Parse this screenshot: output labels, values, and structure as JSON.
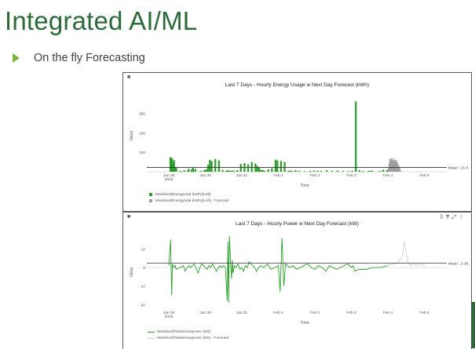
{
  "slide": {
    "title": "Integrated AI/ML",
    "bullet": "On the fly Forecasting"
  },
  "colors": {
    "title": "#2c6a3a",
    "bullet": "#7cb342",
    "series": "#2a9d2a",
    "forecast": "#9e9e9e"
  },
  "chart_data": [
    {
      "type": "bar",
      "title": "Last 7 Days - Hourly Energy Usage w Next Day Forecast (kWh)",
      "xlabel": "Time",
      "ylabel": "Value",
      "x_ticks": [
        "Jan 29\n2025",
        "Jan 30",
        "Jan 31",
        "Feb 1",
        "Feb 2",
        "Feb 3",
        "Feb 4",
        "Feb 5"
      ],
      "y_ticks": [
        100,
        200,
        300
      ],
      "ylim": [
        0,
        370
      ],
      "mean_label": "Mean : 21.8",
      "mean": 21.8,
      "series": [
        {
          "name": "Mainfeed/Energytotal (kWh)(Left)",
          "day_offsets": [
            0.02,
            0.04,
            0.06,
            0.08,
            0.1,
            0.12,
            0.14,
            0.18,
            0.3,
            0.4,
            0.5,
            0.52,
            0.6,
            0.62,
            0.64,
            0.7,
            0.85,
            0.95,
            1.0,
            1.05,
            1.1,
            1.15,
            1.25,
            1.35,
            1.45,
            1.55,
            1.6,
            1.65,
            1.7,
            1.75,
            1.85,
            1.95,
            2.05,
            2.15,
            2.25,
            2.35,
            2.4,
            2.45,
            2.5,
            2.55,
            2.6,
            2.7,
            2.8,
            2.9,
            2.95,
            3.05,
            3.15,
            3.25,
            3.3,
            3.35,
            3.45,
            3.55,
            3.7,
            3.85,
            3.95,
            4.05,
            4.15,
            4.3,
            4.45,
            4.6,
            4.75,
            4.9,
            5.0,
            5.1,
            5.2,
            5.3,
            5.45,
            5.5,
            5.55,
            5.75,
            5.85,
            5.95
          ],
          "values": [
            75,
            60,
            70,
            50,
            45,
            60,
            25,
            20,
            5,
            8,
            5,
            15,
            10,
            12,
            22,
            15,
            5,
            8,
            12,
            35,
            60,
            55,
            65,
            58,
            10,
            5,
            8,
            4,
            5,
            6,
            8,
            40,
            45,
            38,
            50,
            42,
            30,
            20,
            10,
            8,
            5,
            12,
            18,
            62,
            58,
            55,
            50,
            5,
            6,
            4,
            8,
            5,
            3,
            4,
            6,
            5,
            4,
            8,
            5,
            6,
            4,
            3,
            5,
            360,
            8,
            4,
            5,
            3,
            6,
            4,
            10,
            8
          ]
        },
        {
          "name": "Mainfeed/Energytotal (kWh)(Left) - Forecast",
          "day_offsets": [
            6.0,
            6.02,
            6.04,
            6.06,
            6.08,
            6.1,
            6.12,
            6.14,
            6.16,
            6.18,
            6.2,
            6.22,
            6.24,
            6.26,
            6.28,
            6.3,
            6.32
          ],
          "values": [
            20,
            45,
            65,
            55,
            70,
            60,
            52,
            68,
            58,
            50,
            62,
            55,
            48,
            40,
            30,
            20,
            10
          ]
        }
      ]
    },
    {
      "type": "line",
      "title": "Last 7 Days - Hourly Power w Next Day Forecast (kW)",
      "xlabel": "Time",
      "ylabel": "Value",
      "x_ticks": [
        "Jan 29\n2025",
        "Jan 30",
        "Jan 31",
        "Feb 1",
        "Feb 2",
        "Feb 3",
        "Feb 4",
        "Feb 5"
      ],
      "y_ticks": [
        -20,
        -10,
        0,
        10
      ],
      "ylim": [
        -22,
        17
      ],
      "mean_label": "Mean : 2.36",
      "mean": 2.36,
      "series": [
        {
          "name": "Mainfeed/Totalactivepower (kW)",
          "x": [
            0,
            0.05,
            0.08,
            0.1,
            0.14,
            0.18,
            0.2,
            0.3,
            0.4,
            0.45,
            0.5,
            0.55,
            0.6,
            0.7,
            0.8,
            0.85,
            0.9,
            0.95,
            1.0,
            1.05,
            1.1,
            1.15,
            1.2,
            1.25,
            1.3,
            1.4,
            1.45,
            1.5,
            1.55,
            1.6,
            1.62,
            1.64,
            1.66,
            1.7,
            1.72,
            1.74,
            1.76,
            1.8,
            1.85,
            1.9,
            1.95,
            2.0,
            2.05,
            2.1,
            2.15,
            2.2,
            2.3,
            2.35,
            2.4,
            2.5,
            2.6,
            2.7,
            2.8,
            2.9,
            3.0,
            3.05,
            3.1,
            3.15,
            3.2,
            3.3,
            3.4,
            3.5,
            3.6,
            3.7,
            3.8,
            3.9,
            4.0,
            4.1,
            4.2,
            4.3,
            4.4,
            4.5,
            4.6,
            4.7,
            4.8,
            4.9,
            5.0,
            5.05,
            5.1,
            5.2,
            5.4,
            5.6,
            5.8,
            6.0
          ],
          "y": [
            1,
            15,
            -15,
            2,
            0,
            1,
            -1,
            0,
            1,
            -2,
            0,
            1,
            0,
            2,
            -3,
            0,
            2,
            1,
            0,
            -1,
            1,
            0,
            2,
            0,
            -2,
            1,
            0,
            1,
            0,
            -18,
            14,
            -19,
            17,
            0,
            -6,
            4,
            -3,
            1,
            0,
            2,
            -1,
            0,
            -2,
            1,
            0,
            3,
            1,
            0,
            -2,
            1,
            0,
            2,
            -1,
            0,
            1,
            -13,
            16,
            -10,
            2,
            0,
            1,
            -1,
            0,
            1,
            2,
            0,
            -1,
            1,
            0,
            -2,
            1,
            0,
            -1,
            0,
            1,
            2,
            0,
            1,
            -2,
            -1,
            -1,
            0,
            0,
            1
          ]
        },
        {
          "name": "Mainfeed/Totalactivepower (kW) - Forecast",
          "x": [
            6.0,
            6.1,
            6.2,
            6.3,
            6.4,
            6.45,
            6.5,
            6.55,
            6.6,
            6.7,
            6.8,
            6.9,
            7.0
          ],
          "y": [
            1,
            2,
            2,
            3,
            6,
            14,
            8,
            3,
            1,
            2,
            1,
            2,
            1
          ]
        }
      ]
    }
  ]
}
